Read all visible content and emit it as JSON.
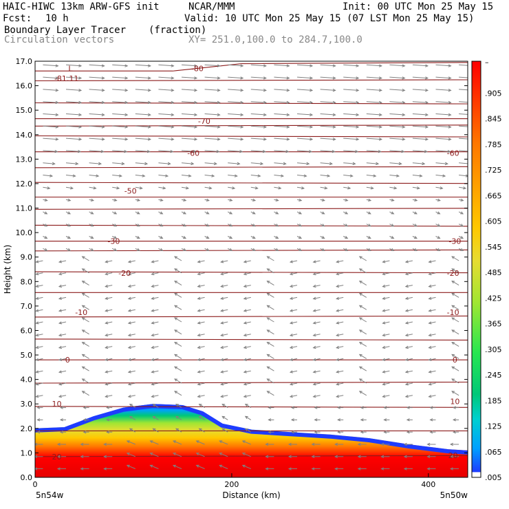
{
  "header": {
    "model": "HAIC-HIWC 13km ARW-GFS init",
    "org": "NCAR/MMM",
    "init": "Init: 00 UTC Mon 25 May 15",
    "fcst_label": "Fcst:",
    "fcst_value": "10 h",
    "valid": "Valid: 10 UTC Mon 25 May 15 (07 LST Mon 25 May 15)",
    "field": "Boundary Layer Tracer",
    "units": "(fraction)",
    "vectors": "Circulation vectors",
    "xy": "XY= 251.0,100.0 to 284.7,100.0"
  },
  "chart_data": {
    "type": "cross-section",
    "ylabel": "Height (km)",
    "xlabel": "Distance (km)",
    "ylim": [
      0,
      17
    ],
    "xlim": [
      0,
      440
    ],
    "y_ticks": [
      "0.0",
      "1.0",
      "2.0",
      "3.0",
      "4.0",
      "5.0",
      "6.0",
      "7.0",
      "8.0",
      "9.0",
      "10.0",
      "11.0",
      "12.0",
      "13.0",
      "14.0",
      "15.0",
      "16.0",
      "17.0"
    ],
    "x_ticks": [
      {
        "value": 0,
        "label": "0"
      },
      {
        "value": 200,
        "label": "200"
      },
      {
        "value": 400,
        "label": "400"
      }
    ],
    "x_end_labels": {
      "left": "5n54w",
      "right": "5n50w"
    },
    "temperature_labels": [
      {
        "text": "-81.11",
        "x": 32,
        "y": 16.3
      },
      {
        "text": "L",
        "x": 36,
        "y": 16.7
      },
      {
        "text": "-80",
        "x": 165,
        "y": 16.7
      },
      {
        "text": "-70",
        "x": 172,
        "y": 14.55
      },
      {
        "text": "-60",
        "x": 161,
        "y": 13.25
      },
      {
        "text": "-60",
        "x": 425,
        "y": 13.25
      },
      {
        "text": "-50",
        "x": 97,
        "y": 11.7
      },
      {
        "text": "-30",
        "x": 80,
        "y": 9.65
      },
      {
        "text": "-30",
        "x": 427,
        "y": 9.65
      },
      {
        "text": "-20",
        "x": 91,
        "y": 8.35
      },
      {
        "text": "-20",
        "x": 425,
        "y": 8.35
      },
      {
        "text": "-10",
        "x": 47,
        "y": 6.75
      },
      {
        "text": "-10",
        "x": 425,
        "y": 6.75
      },
      {
        "text": "0",
        "x": 33,
        "y": 4.8
      },
      {
        "text": "0",
        "x": 427,
        "y": 4.8
      },
      {
        "text": "10",
        "x": 22,
        "y": 3.0
      },
      {
        "text": "10",
        "x": 427,
        "y": 3.1
      },
      {
        "text": "20",
        "x": 22,
        "y": 0.85
      },
      {
        "text": "20",
        "x": 425,
        "y": 0.9
      }
    ],
    "isotherm_heights_km": [
      0.85,
      1.9,
      2.9,
      3.85,
      4.8,
      5.65,
      6.55,
      7.55,
      8.4,
      9.25,
      9.65,
      10.3,
      10.95,
      11.45,
      12.05,
      12.65,
      13.3,
      13.95,
      14.35,
      14.65,
      15.3,
      16.2
    ],
    "boundary_layer_top_km": [
      {
        "x": 0,
        "z": 2.0
      },
      {
        "x": 30,
        "z": 2.05
      },
      {
        "x": 60,
        "z": 2.5
      },
      {
        "x": 90,
        "z": 2.85
      },
      {
        "x": 120,
        "z": 3.0
      },
      {
        "x": 150,
        "z": 2.95
      },
      {
        "x": 170,
        "z": 2.7
      },
      {
        "x": 190,
        "z": 2.2
      },
      {
        "x": 220,
        "z": 1.95
      },
      {
        "x": 260,
        "z": 1.85
      },
      {
        "x": 300,
        "z": 1.75
      },
      {
        "x": 340,
        "z": 1.6
      },
      {
        "x": 380,
        "z": 1.35
      },
      {
        "x": 420,
        "z": 1.15
      },
      {
        "x": 440,
        "z": 1.1
      }
    ],
    "colorbar_ticks": [
      ".005",
      ".065",
      ".125",
      ".185",
      ".245",
      ".305",
      ".365",
      ".425",
      ".485",
      ".545",
      ".605",
      ".665",
      ".725",
      ".785",
      ".845",
      ".905"
    ],
    "colorbar_range": [
      0.005,
      0.965
    ],
    "colorbar_top_label": "–",
    "colorbar_colors": [
      "#ffffff",
      "#1e3cff",
      "#00a0ff",
      "#00d0d0",
      "#00c878",
      "#28e650",
      "#a0e632",
      "#e6dc32",
      "#ffc800",
      "#ffa000",
      "#ff7800",
      "#ff3c00",
      "#ff0000",
      "#e60000"
    ],
    "wind_regime": "westerly aloft, weak easterly at low levels",
    "colors": {
      "isotherm": "#8b1a1a",
      "vector": "#808080",
      "axis": "#000000"
    }
  }
}
